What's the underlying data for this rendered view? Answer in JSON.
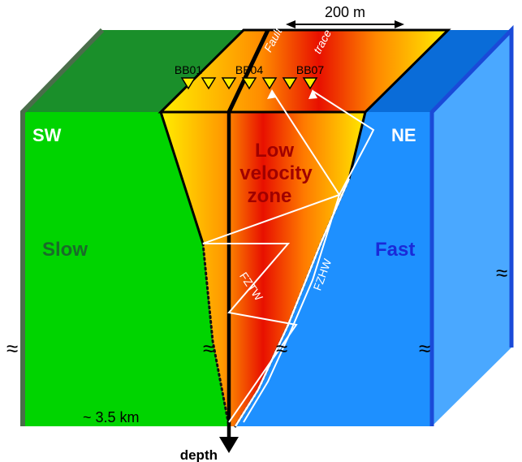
{
  "labels": {
    "sw": "SW",
    "ne": "NE",
    "slow": "Slow",
    "fast": "Fast",
    "zone_line1": "Low",
    "zone_line2": "velocity",
    "zone_line3": "zone",
    "fault_word1": "Fault",
    "fault_word2": "trace",
    "scale": "200 m",
    "depth_extent": "~ 3.5 km",
    "depth": "depth",
    "fztw": "FZTW",
    "fzhw": "FZHW",
    "break_symbol": "≈"
  },
  "stations": [
    {
      "label": "BB01"
    },
    {
      "label": ""
    },
    {
      "label": ""
    },
    {
      "label": "BB04"
    },
    {
      "label": ""
    },
    {
      "label": ""
    },
    {
      "label": "BB07"
    }
  ],
  "colors": {
    "slow_block": "#00d400",
    "slow_top": "#1a8f2a",
    "slow_edge": "#4a6e4a",
    "fast_block": "#1e90ff",
    "fast_top": "#0a6cd8",
    "fast_side": "#4aa8ff",
    "fast_edge": "#1a4ad8",
    "zone_core": "#e00000",
    "zone_edge": "#ffee00",
    "slow_text": "#1a6b2a",
    "fast_text": "#1a2ad8",
    "zone_text": "#a00000",
    "ray": "#ffffff"
  }
}
